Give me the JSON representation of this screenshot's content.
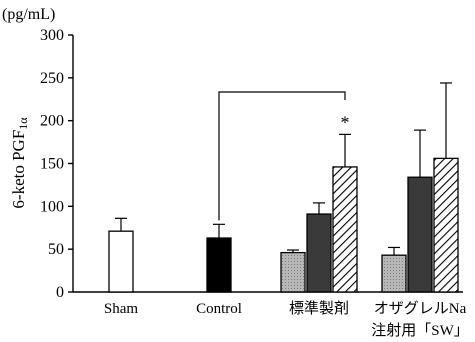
{
  "chart_data": {
    "type": "bar",
    "unit": "(pg/mL)",
    "ylabel": "6-keto PGF1α",
    "ylabel_main": "6-keto PGF",
    "ylabel_sub": "1α",
    "ylim": [
      0,
      300
    ],
    "yticks": [
      0,
      50,
      100,
      150,
      200,
      250,
      300
    ],
    "groups": [
      {
        "label": "Sham",
        "label_line2": "",
        "bars": [
          {
            "value": 71,
            "error": 15,
            "fill": "white"
          }
        ]
      },
      {
        "label": "Control",
        "label_line2": "",
        "bars": [
          {
            "value": 63,
            "error": 16,
            "fill": "black"
          }
        ]
      },
      {
        "label": "標準製剤",
        "label_line2": "",
        "bars": [
          {
            "value": 46,
            "error": 3,
            "fill": "gray"
          },
          {
            "value": 91,
            "error": 13,
            "fill": "darkgray"
          },
          {
            "value": 146,
            "error": 38,
            "fill": "hatch"
          }
        ]
      },
      {
        "label": "オザグレルNa",
        "label_line2": "注射用「SW」",
        "bars": [
          {
            "value": 43,
            "error": 9,
            "fill": "gray"
          },
          {
            "value": 134,
            "error": 55,
            "fill": "darkgray"
          },
          {
            "value": 156,
            "error": 88,
            "fill": "hatch"
          }
        ]
      }
    ],
    "annotation": {
      "text": "*",
      "from_group": 1,
      "to_group": 2,
      "to_bar": 2
    }
  },
  "colors": {
    "gray": "#a9a9a9",
    "darkgray": "#3a3a3a",
    "black": "#000000",
    "white": "#ffffff"
  }
}
